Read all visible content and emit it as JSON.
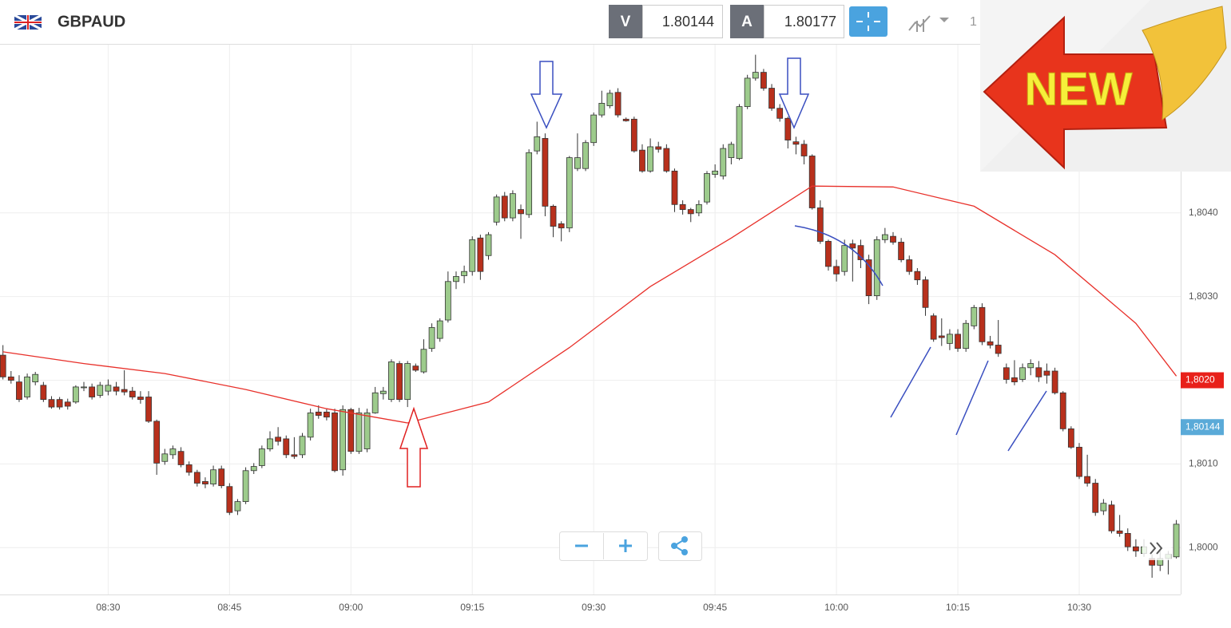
{
  "header": {
    "symbol": "GBPAUD",
    "sell_label": "V",
    "sell_price": "1.80144",
    "buy_label": "A",
    "buy_price": "1.80177",
    "partial": "1"
  },
  "badge": "NEW",
  "chart_data": {
    "type": "candlestick",
    "up_color": "#9dcb8c",
    "down_color": "#b8301c",
    "x": [
      "08:17",
      "08:18",
      "08:19",
      "08:20",
      "08:21",
      "08:22",
      "08:23",
      "08:24",
      "08:25",
      "08:26",
      "08:27",
      "08:28",
      "08:29",
      "08:30",
      "08:31",
      "08:32",
      "08:33",
      "08:34",
      "08:35",
      "08:36",
      "08:37",
      "08:38",
      "08:39",
      "08:40",
      "08:41",
      "08:42",
      "08:43",
      "08:44",
      "08:45",
      "08:46",
      "08:47",
      "08:48",
      "08:49",
      "08:50",
      "08:51",
      "08:52",
      "08:53",
      "08:54",
      "08:55",
      "08:56",
      "08:57",
      "08:58",
      "08:59",
      "09:00",
      "09:01",
      "09:02",
      "09:03",
      "09:04",
      "09:05",
      "09:06",
      "09:07",
      "09:08",
      "09:09",
      "09:10",
      "09:11",
      "09:12",
      "09:13",
      "09:14",
      "09:15",
      "09:16",
      "09:17",
      "09:18",
      "09:19",
      "09:20",
      "09:21",
      "09:22",
      "09:23",
      "09:24",
      "09:25",
      "09:26",
      "09:27",
      "09:28",
      "09:29",
      "09:30",
      "09:31",
      "09:32",
      "09:33",
      "09:34",
      "09:35",
      "09:36",
      "09:37",
      "09:38",
      "09:39",
      "09:40",
      "09:41",
      "09:42",
      "09:43",
      "09:44",
      "09:45",
      "09:46",
      "09:47",
      "09:48",
      "09:49",
      "09:50",
      "09:51",
      "09:52",
      "09:53",
      "09:54",
      "09:55",
      "09:56",
      "09:57",
      "09:58",
      "09:59",
      "10:00",
      "10:01",
      "10:02",
      "10:03",
      "10:04",
      "10:05",
      "10:06",
      "10:07",
      "10:08",
      "10:09",
      "10:10",
      "10:11",
      "10:12",
      "10:13",
      "10:14",
      "10:15",
      "10:16",
      "10:17",
      "10:18",
      "10:19",
      "10:20",
      "10:21",
      "10:22",
      "10:23",
      "10:24",
      "10:25",
      "10:26",
      "10:27",
      "10:28",
      "10:29",
      "10:30",
      "10:31",
      "10:32",
      "10:33",
      "10:34",
      "10:35",
      "10:36",
      "10:37",
      "10:38",
      "10:39",
      "10:40",
      "10:41",
      "10:42"
    ],
    "ohlc": [
      [
        1.8023,
        1.80242,
        1.80201,
        1.80204
      ],
      [
        1.80204,
        1.80211,
        1.80196,
        1.802
      ],
      [
        1.80198,
        1.80206,
        1.80174,
        1.80177
      ],
      [
        1.8018,
        1.80208,
        1.80177,
        1.80204
      ],
      [
        1.80198,
        1.8021,
        1.80194,
        1.80207
      ],
      [
        1.80194,
        1.80198,
        1.80174,
        1.80177
      ],
      [
        1.80177,
        1.80181,
        1.80166,
        1.80168
      ],
      [
        1.80177,
        1.8018,
        1.80165,
        1.80168
      ],
      [
        1.80174,
        1.80178,
        1.80165,
        1.80169
      ],
      [
        1.80174,
        1.80194,
        1.80172,
        1.80192
      ],
      [
        1.80191,
        1.80198,
        1.80187,
        1.80192
      ],
      [
        1.80192,
        1.80196,
        1.80177,
        1.8018
      ],
      [
        1.80182,
        1.80198,
        1.80179,
        1.80194
      ],
      [
        1.80187,
        1.80201,
        1.80182,
        1.80194
      ],
      [
        1.80192,
        1.80198,
        1.80182,
        1.80187
      ],
      [
        1.80189,
        1.80212,
        1.80182,
        1.80186
      ],
      [
        1.80187,
        1.80192,
        1.80177,
        1.8018
      ],
      [
        1.8018,
        1.80187,
        1.80172,
        1.80177
      ],
      [
        1.8018,
        1.80187,
        1.80149,
        1.80151
      ],
      [
        1.80151,
        1.80153,
        1.80087,
        1.80101
      ],
      [
        1.80103,
        1.80118,
        1.80099,
        1.80112
      ],
      [
        1.80111,
        1.80122,
        1.80106,
        1.80118
      ],
      [
        1.80115,
        1.8012,
        1.80096,
        1.80099
      ],
      [
        1.80099,
        1.80103,
        1.80086,
        1.8009
      ],
      [
        1.8009,
        1.80093,
        1.80073,
        1.80077
      ],
      [
        1.80079,
        1.80084,
        1.80071,
        1.80076
      ],
      [
        1.80076,
        1.80098,
        1.80073,
        1.80093
      ],
      [
        1.80094,
        1.80098,
        1.80071,
        1.80074
      ],
      [
        1.80073,
        1.80077,
        1.80039,
        1.80042
      ],
      [
        1.80044,
        1.80058,
        1.80039,
        1.80055
      ],
      [
        1.80055,
        1.80096,
        1.80052,
        1.80092
      ],
      [
        1.80092,
        1.80101,
        1.80088,
        1.80097
      ],
      [
        1.80098,
        1.80122,
        1.80095,
        1.80118
      ],
      [
        1.80118,
        1.80139,
        1.80115,
        1.8013
      ],
      [
        1.80132,
        1.80144,
        1.80122,
        1.80127
      ],
      [
        1.8013,
        1.80134,
        1.80107,
        1.80111
      ],
      [
        1.80111,
        1.80132,
        1.80106,
        1.80109
      ],
      [
        1.80111,
        1.80137,
        1.80107,
        1.80133
      ],
      [
        1.80132,
        1.80166,
        1.80128,
        1.80161
      ],
      [
        1.80162,
        1.8017,
        1.80154,
        1.80158
      ],
      [
        1.80162,
        1.80166,
        1.80152,
        1.80156
      ],
      [
        1.80161,
        1.80166,
        1.8009,
        1.80092
      ],
      [
        1.80093,
        1.8017,
        1.80086,
        1.80165
      ],
      [
        1.80165,
        1.80167,
        1.80112,
        1.80115
      ],
      [
        1.80115,
        1.80167,
        1.80112,
        1.80161
      ],
      [
        1.80118,
        1.80166,
        1.80114,
        1.80161
      ],
      [
        1.80161,
        1.80192,
        1.8016,
        1.80185
      ],
      [
        1.80184,
        1.80192,
        1.80177,
        1.80187
      ],
      [
        1.80177,
        1.80225,
        1.80174,
        1.80222
      ],
      [
        1.8022,
        1.80223,
        1.80174,
        1.80177
      ],
      [
        1.80177,
        1.80223,
        1.80168,
        1.8022
      ],
      [
        1.80217,
        1.8022,
        1.8021,
        1.80212
      ],
      [
        1.8021,
        1.80249,
        1.80208,
        1.80237
      ],
      [
        1.80238,
        1.80268,
        1.80234,
        1.80263
      ],
      [
        1.8025,
        1.80274,
        1.80246,
        1.80271
      ],
      [
        1.80272,
        1.8033,
        1.80269,
        1.80318
      ],
      [
        1.80318,
        1.8033,
        1.80309,
        1.80324
      ],
      [
        1.80325,
        1.80337,
        1.80316,
        1.8033
      ],
      [
        1.8033,
        1.80372,
        1.80325,
        1.80368
      ],
      [
        1.8037,
        1.80374,
        1.8032,
        1.8033
      ],
      [
        1.80349,
        1.80377,
        1.80344,
        1.80374
      ],
      [
        1.80389,
        1.80422,
        1.80385,
        1.80419
      ],
      [
        1.8042,
        1.80425,
        1.8039,
        1.80394
      ],
      [
        1.80394,
        1.80427,
        1.8039,
        1.80423
      ],
      [
        1.80404,
        1.8041,
        1.80369,
        1.80399
      ],
      [
        1.80398,
        1.80476,
        1.80394,
        1.80472
      ],
      [
        1.80474,
        1.80509,
        1.8047,
        1.80491
      ],
      [
        1.80489,
        1.80495,
        1.80396,
        1.80408
      ],
      [
        1.80408,
        1.8041,
        1.80371,
        1.80384
      ],
      [
        1.80387,
        1.8039,
        1.80366,
        1.80382
      ],
      [
        1.80382,
        1.80468,
        1.80377,
        1.80466
      ],
      [
        1.80453,
        1.80495,
        1.8045,
        1.80466
      ],
      [
        1.80453,
        1.80487,
        1.8045,
        1.80484
      ],
      [
        1.80484,
        1.8052,
        1.8048,
        1.80517
      ],
      [
        1.80517,
        1.80546,
        1.80514,
        1.80531
      ],
      [
        1.80528,
        1.80547,
        1.80525,
        1.80543
      ],
      [
        1.80544,
        1.80549,
        1.80514,
        1.80517
      ],
      [
        1.80512,
        1.80514,
        1.80509,
        1.8051
      ],
      [
        1.80512,
        1.80515,
        1.80472,
        1.80474
      ],
      [
        1.80475,
        1.80482,
        1.80448,
        1.8045
      ],
      [
        1.8045,
        1.80489,
        1.80448,
        1.80479
      ],
      [
        1.80479,
        1.80485,
        1.80472,
        1.80476
      ],
      [
        1.80477,
        1.80482,
        1.80448,
        1.8045
      ],
      [
        1.8045,
        1.80453,
        1.80401,
        1.8041
      ],
      [
        1.8041,
        1.80415,
        1.80398,
        1.80404
      ],
      [
        1.80404,
        1.80406,
        1.80389,
        1.80399
      ],
      [
        1.804,
        1.80415,
        1.80396,
        1.8041
      ],
      [
        1.80413,
        1.8045,
        1.8041,
        1.80447
      ],
      [
        1.80446,
        1.80458,
        1.80442,
        1.8045
      ],
      [
        1.80444,
        1.80482,
        1.8044,
        1.80477
      ],
      [
        1.80466,
        1.80485,
        1.80458,
        1.80482
      ],
      [
        1.80465,
        1.8053,
        1.80463,
        1.80527
      ],
      [
        1.80527,
        1.80565,
        1.80524,
        1.80561
      ],
      [
        1.80561,
        1.80589,
        1.80558,
        1.80568
      ],
      [
        1.80568,
        1.80572,
        1.80546,
        1.80549
      ],
      [
        1.80549,
        1.80554,
        1.80522,
        1.80525
      ],
      [
        1.80525,
        1.8053,
        1.80509,
        1.80513
      ],
      [
        1.80513,
        1.80515,
        1.80477,
        1.80487
      ],
      [
        1.80485,
        1.80491,
        1.8047,
        1.80482
      ],
      [
        1.80482,
        1.80487,
        1.80458,
        1.80468
      ],
      [
        1.80468,
        1.8047,
        1.80404,
        1.80406
      ],
      [
        1.80406,
        1.80415,
        1.80363,
        1.80366
      ],
      [
        1.80366,
        1.80368,
        1.80331,
        1.80336
      ],
      [
        1.80336,
        1.80344,
        1.80318,
        1.80327
      ],
      [
        1.8033,
        1.80368,
        1.80325,
        1.80361
      ],
      [
        1.80363,
        1.80368,
        1.80318,
        1.80358
      ],
      [
        1.80361,
        1.80368,
        1.80334,
        1.80344
      ],
      [
        1.80344,
        1.8035,
        1.80291,
        1.80301
      ],
      [
        1.80301,
        1.80372,
        1.80296,
        1.80368
      ],
      [
        1.80368,
        1.80382,
        1.80364,
        1.80374
      ],
      [
        1.80372,
        1.80377,
        1.80362,
        1.80365
      ],
      [
        1.80365,
        1.8037,
        1.80341,
        1.80344
      ],
      [
        1.80344,
        1.80349,
        1.80326,
        1.8033
      ],
      [
        1.8033,
        1.80334,
        1.80314,
        1.8032
      ],
      [
        1.8032,
        1.80324,
        1.80277,
        1.80287
      ],
      [
        1.80277,
        1.8028,
        1.80246,
        1.80249
      ],
      [
        1.80253,
        1.80274,
        1.80241,
        1.80251
      ],
      [
        1.80244,
        1.80261,
        1.80236,
        1.80255
      ],
      [
        1.80255,
        1.80261,
        1.80234,
        1.80238
      ],
      [
        1.80238,
        1.80272,
        1.80234,
        1.80268
      ],
      [
        1.80265,
        1.8029,
        1.80261,
        1.80287
      ],
      [
        1.80287,
        1.80292,
        1.80242,
        1.80246
      ],
      [
        1.80246,
        1.80253,
        1.80238,
        1.80242
      ],
      [
        1.80242,
        1.80272,
        1.80228,
        1.80232
      ],
      [
        1.80215,
        1.8022,
        1.80196,
        1.80201
      ],
      [
        1.80203,
        1.80224,
        1.80194,
        1.80198
      ],
      [
        1.80201,
        1.8022,
        1.80198,
        1.80215
      ],
      [
        1.80215,
        1.80225,
        1.80206,
        1.8022
      ],
      [
        1.80215,
        1.80223,
        1.80198,
        1.80204
      ],
      [
        1.80211,
        1.8022,
        1.80196,
        1.80206
      ],
      [
        1.80211,
        1.80215,
        1.80183,
        1.80185
      ],
      [
        1.80185,
        1.80187,
        1.80139,
        1.80142
      ],
      [
        1.80142,
        1.80145,
        1.80118,
        1.8012
      ],
      [
        1.8012,
        1.80125,
        1.80082,
        1.80085
      ],
      [
        1.80085,
        1.80111,
        1.80073,
        1.80077
      ],
      [
        1.80077,
        1.80082,
        1.80038,
        1.80042
      ],
      [
        1.80044,
        1.80058,
        1.80039,
        1.80053
      ],
      [
        1.80051,
        1.80056,
        1.80017,
        1.8002
      ],
      [
        1.8002,
        1.80039,
        1.80013,
        1.80017
      ],
      [
        1.80017,
        1.80023,
        1.79996,
        1.80001
      ],
      [
        1.80001,
        1.8001,
        1.79989,
        1.79996
      ],
      [
        1.79993,
        1.8001,
        1.79989,
        1.80001
      ],
      [
        1.79987,
        1.79992,
        1.79964,
        1.79979
      ],
      [
        1.79979,
        1.79996,
        1.79972,
        1.79987
      ],
      [
        1.79987,
        1.79996,
        1.79968,
        1.79992
      ],
      [
        1.79989,
        1.80033,
        1.79987,
        1.80028
      ]
    ],
    "moving_average": {
      "color": "#e8302a",
      "x": [
        "08:17",
        "08:27",
        "08:37",
        "08:47",
        "08:57",
        "09:07",
        "09:17",
        "09:27",
        "09:37",
        "09:47",
        "09:57",
        "10:07",
        "10:17",
        "10:27",
        "10:37",
        "10:42"
      ],
      "values": [
        1.80234,
        1.8022,
        1.80208,
        1.80189,
        1.80166,
        1.80149,
        1.80174,
        1.80239,
        1.80312,
        1.8037,
        1.80432,
        1.80431,
        1.80408,
        1.8035,
        1.80268,
        1.80205
      ]
    },
    "ylim": [
      1.79944,
      1.80601
    ],
    "yticks": [
      {
        "value": 1.8,
        "label": "1,8000"
      },
      {
        "value": 1.801,
        "label": "1,8010"
      },
      {
        "value": 1.802,
        "label": "1,8020"
      },
      {
        "value": 1.803,
        "label": "1,8030"
      },
      {
        "value": 1.804,
        "label": "1,8040"
      }
    ],
    "xticks": [
      "08:30",
      "08:45",
      "09:00",
      "09:15",
      "09:30",
      "09:45",
      "10:00",
      "10:15",
      "10:30"
    ],
    "grid": true,
    "price_labels": [
      {
        "value": 1.802,
        "label": "1,8020",
        "color": "#e8201a"
      },
      {
        "value": 1.80144,
        "label": "1,80144",
        "color": "#5aaad8"
      }
    ]
  }
}
